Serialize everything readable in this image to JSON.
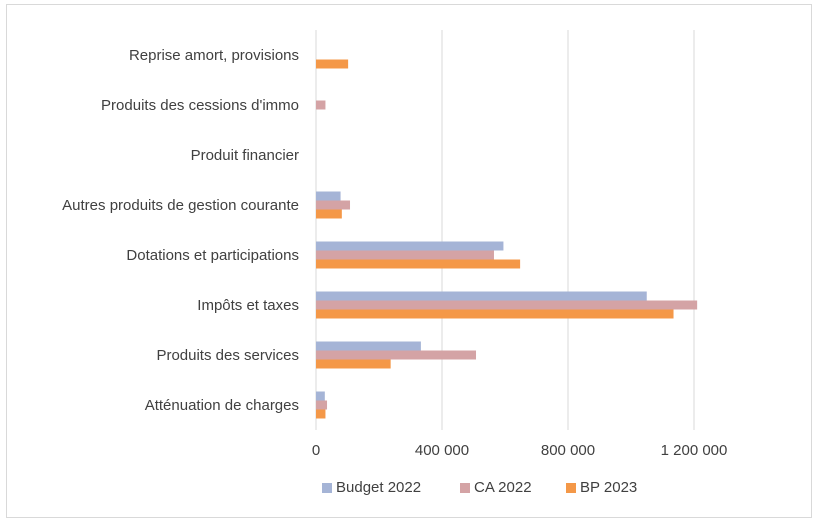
{
  "chart_data": {
    "type": "bar",
    "orientation": "horizontal",
    "title": "",
    "xlabel": "",
    "ylabel": "",
    "categories": [
      "Reprise amort, provisions",
      "Produits des cessions d'immo",
      "Produit financier",
      "Autres produits de gestion courante",
      "Dotations et participations",
      "Impôts et taxes",
      "Produits des services",
      "Atténuation de charges"
    ],
    "series": [
      {
        "name": "Budget 2022",
        "color": "#a5b4d6",
        "values": [
          0,
          0,
          0,
          78000,
          595000,
          1050000,
          333000,
          28000
        ]
      },
      {
        "name": "CA 2022",
        "color": "#d4a3a5",
        "values": [
          0,
          30000,
          0,
          108000,
          565000,
          1210000,
          508000,
          35000
        ]
      },
      {
        "name": "BP 2023",
        "color": "#f49848",
        "values": [
          102000,
          0,
          0,
          82000,
          648000,
          1135000,
          237000,
          30000
        ]
      }
    ],
    "xlim": [
      0,
      1400000
    ],
    "xticks": [
      0,
      400000,
      800000,
      1200000
    ],
    "xtick_labels": [
      "0",
      "400 000",
      "800 000",
      "1 200 000"
    ],
    "grid": "vertical",
    "legend": "bottom"
  }
}
